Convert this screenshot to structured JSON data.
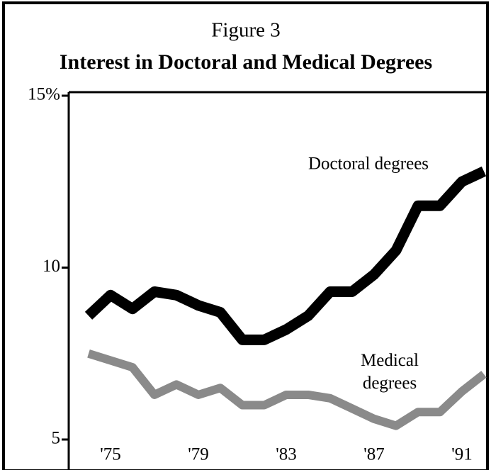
{
  "chart_data": {
    "type": "line",
    "title": "Figure 3",
    "subtitle": "Interest in Doctoral and Medical Degrees",
    "categories": [
      null,
      "'75",
      null,
      null,
      null,
      "'79",
      null,
      null,
      null,
      "'83",
      null,
      null,
      null,
      "'87",
      null,
      null,
      null,
      "'91",
      null
    ],
    "series": [
      {
        "name": "Doctoral degrees",
        "color": "#000000",
        "values": [
          8.6,
          9.2,
          8.8,
          9.3,
          9.2,
          8.9,
          8.7,
          7.9,
          7.9,
          8.2,
          8.6,
          9.3,
          9.3,
          9.8,
          10.5,
          11.8,
          11.8,
          12.5,
          12.8
        ]
      },
      {
        "name": "Medical degrees",
        "color": "#8a8a8a",
        "values": [
          7.5,
          7.3,
          7.1,
          6.3,
          6.6,
          6.3,
          6.5,
          6.0,
          6.0,
          6.3,
          6.3,
          6.2,
          5.9,
          5.6,
          5.4,
          5.8,
          5.8,
          6.4,
          6.9
        ]
      }
    ],
    "ylim": [
      5,
      15
    ],
    "yticks": [
      5,
      10,
      {
        "value": 15,
        "label": "15%"
      }
    ]
  }
}
